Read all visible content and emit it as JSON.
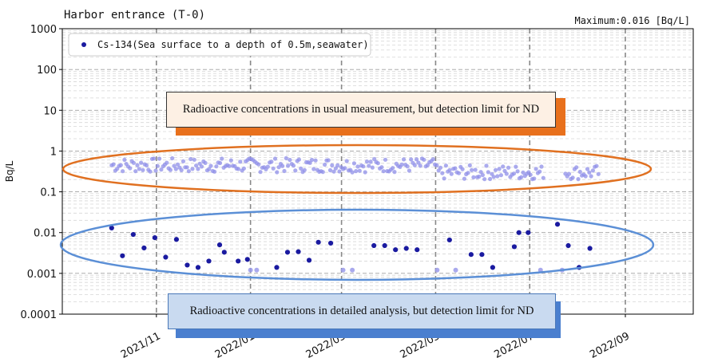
{
  "header": {
    "title": "Harbor entrance (T-0)",
    "maximum": "Maximum:0.016 [Bq/L]"
  },
  "callouts": {
    "top": "Radioactive concentrations in usual measurement, but detection limit for ND",
    "bottom": "Radioactive concentrations in detailed analysis, but detection limit for ND"
  },
  "colors": {
    "detected": "#1a1aa0",
    "nd": "#8f8fe8",
    "orange_ellipse": "#e07020",
    "blue_ellipse": "#5b8fd6"
  },
  "chart_data": {
    "type": "scatter",
    "title": "Harbor entrance (T-0)",
    "ylabel": "Bq/L",
    "xlabel": "",
    "yscale": "log",
    "ylim": [
      0.0001,
      1000
    ],
    "y_ticks": [
      "0.0001",
      "0.001",
      "0.01",
      "0.1",
      "1",
      "10",
      "100",
      "1000"
    ],
    "xlim": [
      "2021-09-01",
      "2022-10-15"
    ],
    "x_ticks": [
      "2021/11",
      "2022/01",
      "2022/03",
      "2022/05",
      "2022/07",
      "2022/09"
    ],
    "x_tick_values": [
      "2021-11-01",
      "2022-01-01",
      "2022-03-01",
      "2022-05-01",
      "2022-07-01",
      "2022-09-01"
    ],
    "grid": true,
    "legend": "top-left",
    "series": [
      {
        "name": "Cs-134(Sea surface to a depth of 0.5m,seawater)",
        "marker": "detected",
        "points": [
          {
            "x": "2021-10-03",
            "y": 0.013
          },
          {
            "x": "2021-10-10",
            "y": 0.0027
          },
          {
            "x": "2021-10-17",
            "y": 0.009
          },
          {
            "x": "2021-10-24",
            "y": 0.0042
          },
          {
            "x": "2021-10-31",
            "y": 0.0075
          },
          {
            "x": "2021-11-07",
            "y": 0.0025
          },
          {
            "x": "2021-11-14",
            "y": 0.0068
          },
          {
            "x": "2021-11-21",
            "y": 0.0016
          },
          {
            "x": "2021-11-28",
            "y": 0.0014
          },
          {
            "x": "2021-12-05",
            "y": 0.002
          },
          {
            "x": "2021-12-12",
            "y": 0.005
          },
          {
            "x": "2021-12-15",
            "y": 0.0033
          },
          {
            "x": "2021-12-24",
            "y": 0.002
          },
          {
            "x": "2021-12-30",
            "y": 0.0022
          },
          {
            "x": "2022-01-18",
            "y": 0.0014
          },
          {
            "x": "2022-01-25",
            "y": 0.0033
          },
          {
            "x": "2022-02-01",
            "y": 0.0034
          },
          {
            "x": "2022-02-08",
            "y": 0.0021
          },
          {
            "x": "2022-02-14",
            "y": 0.0058
          },
          {
            "x": "2022-02-22",
            "y": 0.0055
          },
          {
            "x": "2022-03-22",
            "y": 0.0048
          },
          {
            "x": "2022-03-29",
            "y": 0.0048
          },
          {
            "x": "2022-04-05",
            "y": 0.0038
          },
          {
            "x": "2022-04-12",
            "y": 0.0041
          },
          {
            "x": "2022-04-19",
            "y": 0.0038
          },
          {
            "x": "2022-05-10",
            "y": 0.0066
          },
          {
            "x": "2022-05-24",
            "y": 0.0029
          },
          {
            "x": "2022-05-31",
            "y": 0.0029
          },
          {
            "x": "2022-06-07",
            "y": 0.0014
          },
          {
            "x": "2022-06-21",
            "y": 0.0045
          },
          {
            "x": "2022-06-24",
            "y": 0.01
          },
          {
            "x": "2022-06-30",
            "y": 0.01
          },
          {
            "x": "2022-07-19",
            "y": 0.016
          },
          {
            "x": "2022-07-26",
            "y": 0.0048
          },
          {
            "x": "2022-08-02",
            "y": 0.0014
          },
          {
            "x": "2022-08-09",
            "y": 0.0041
          }
        ]
      },
      {
        "name": "",
        "marker": "nd",
        "note_points": [
          {
            "x": "2022-01-01",
            "y": 0.0012
          },
          {
            "x": "2022-01-05",
            "y": 0.0012
          },
          {
            "x": "2022-03-02",
            "y": 0.0012
          },
          {
            "x": "2022-03-08",
            "y": 0.0012
          },
          {
            "x": "2022-05-02",
            "y": 0.0012
          },
          {
            "x": "2022-05-14",
            "y": 0.0012
          },
          {
            "x": "2022-07-08",
            "y": 0.0012
          },
          {
            "x": "2022-07-22",
            "y": 0.0012
          }
        ]
      }
    ]
  }
}
